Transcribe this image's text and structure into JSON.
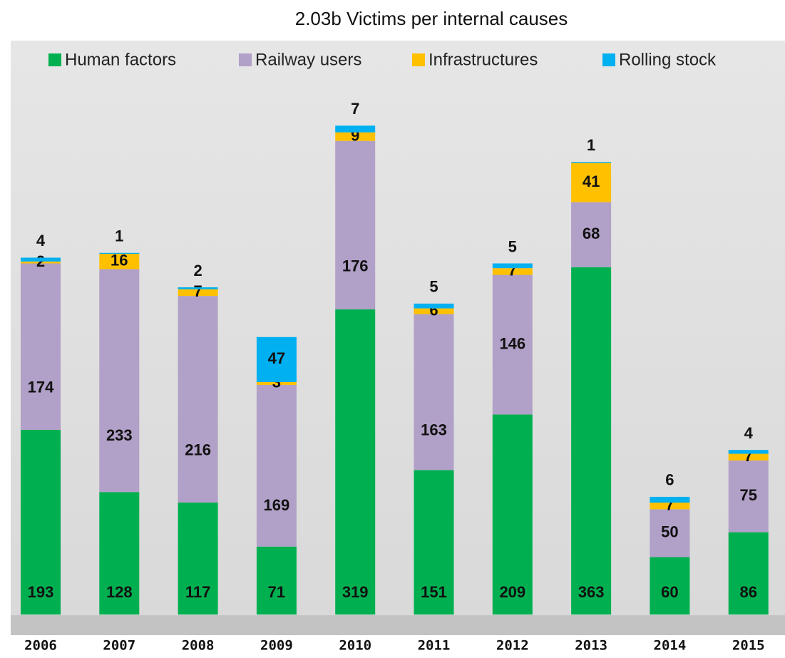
{
  "chart_data": {
    "type": "stacked_bar",
    "title": "2.03b Victims per internal causes",
    "categories": [
      "2006",
      "2007",
      "2008",
      "2009",
      "2010",
      "2011",
      "2012",
      "2013",
      "2014",
      "2015"
    ],
    "series": [
      {
        "name": "Human factors",
        "color": "#00b050",
        "values": [
          193,
          128,
          117,
          71,
          319,
          151,
          209,
          363,
          60,
          86
        ]
      },
      {
        "name": "Railway users",
        "color": "#b1a0c7",
        "values": [
          174,
          233,
          216,
          169,
          176,
          163,
          146,
          68,
          50,
          75
        ]
      },
      {
        "name": "Infrastructures",
        "color": "#ffc000",
        "values": [
          2,
          16,
          7,
          3,
          9,
          6,
          7,
          41,
          7,
          7
        ]
      },
      {
        "name": "Rolling stock",
        "color": "#00b0f0",
        "values": [
          4,
          1,
          2,
          47,
          7,
          5,
          5,
          1,
          6,
          4
        ]
      }
    ],
    "legend": "top"
  }
}
